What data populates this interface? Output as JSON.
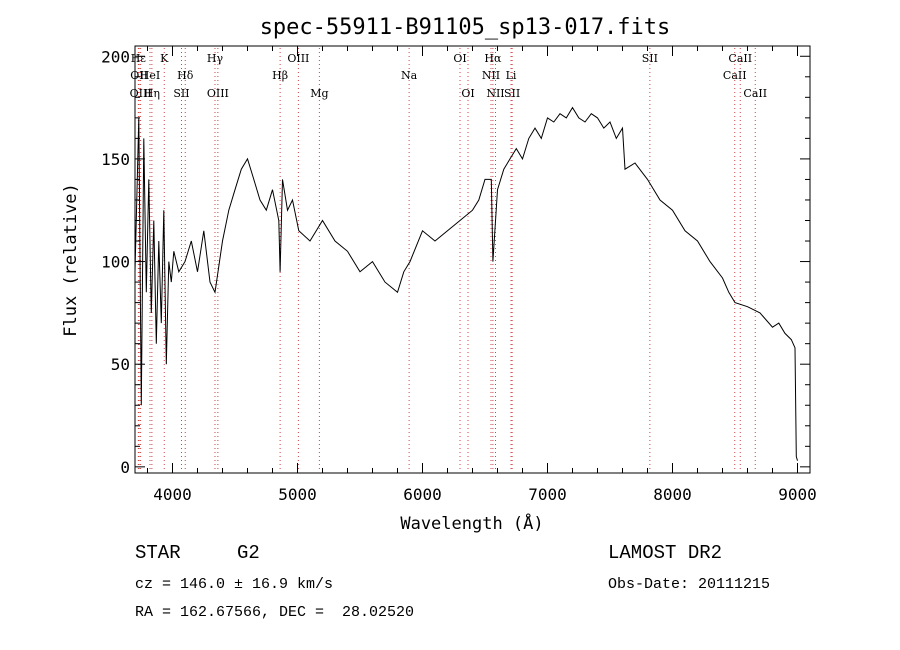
{
  "chart_data": {
    "type": "line",
    "title": "spec-55911-B91105_sp13-017.fits",
    "xlabel": "Wavelength (Å)",
    "ylabel": "Flux (relative)",
    "xlim": [
      3700,
      9100
    ],
    "ylim": [
      -3,
      205
    ],
    "x_ticks": [
      4000,
      5000,
      6000,
      7000,
      8000,
      9000
    ],
    "y_ticks": [
      0,
      50,
      100,
      150,
      200
    ],
    "grid": false,
    "series": [
      {
        "color": "#000000",
        "x": [
          3700,
          3730,
          3750,
          3770,
          3790,
          3810,
          3830,
          3850,
          3870,
          3890,
          3910,
          3930,
          3950,
          3970,
          3990,
          4010,
          4050,
          4100,
          4150,
          4200,
          4250,
          4300,
          4340,
          4400,
          4450,
          4500,
          4550,
          4600,
          4650,
          4700,
          4750,
          4800,
          4850,
          4861,
          4880,
          4920,
          4960,
          5010,
          5100,
          5200,
          5300,
          5400,
          5500,
          5600,
          5700,
          5800,
          5850,
          5900,
          6000,
          6100,
          6200,
          6300,
          6400,
          6450,
          6500,
          6550,
          6563,
          6600,
          6650,
          6700,
          6750,
          6800,
          6850,
          6900,
          6950,
          7000,
          7050,
          7100,
          7150,
          7200,
          7250,
          7300,
          7350,
          7400,
          7450,
          7500,
          7550,
          7600,
          7620,
          7700,
          7800,
          7900,
          8000,
          8100,
          8200,
          8300,
          8400,
          8450,
          8500,
          8600,
          8700,
          8800,
          8850,
          8900,
          8950,
          8980,
          8990,
          9000
        ],
        "y": [
          95,
          170,
          30,
          160,
          85,
          140,
          75,
          120,
          60,
          110,
          70,
          125,
          50,
          100,
          90,
          105,
          95,
          100,
          110,
          95,
          115,
          90,
          85,
          110,
          125,
          135,
          145,
          150,
          140,
          130,
          125,
          135,
          120,
          95,
          140,
          125,
          130,
          115,
          110,
          120,
          110,
          105,
          95,
          100,
          90,
          85,
          95,
          100,
          115,
          110,
          115,
          120,
          125,
          130,
          140,
          140,
          100,
          135,
          145,
          150,
          155,
          150,
          160,
          165,
          160,
          170,
          168,
          172,
          170,
          175,
          170,
          168,
          172,
          170,
          165,
          168,
          160,
          165,
          145,
          148,
          140,
          130,
          125,
          115,
          110,
          100,
          92,
          85,
          80,
          78,
          75,
          68,
          70,
          65,
          62,
          58,
          5,
          3
        ]
      }
    ],
    "line_markers": [
      {
        "label": "Hε",
        "x": 3727,
        "row": 1
      },
      {
        "label": "OII",
        "x": 3733,
        "row": 2
      },
      {
        "label": "OIII",
        "x": 3745,
        "row": 3
      },
      {
        "label": "Hη",
        "x": 3835,
        "row": 3
      },
      {
        "label": "HeI",
        "x": 3820,
        "row": 2
      },
      {
        "label": "K",
        "x": 3934,
        "row": 1
      },
      {
        "label": "Hδ",
        "x": 4102,
        "row": 2
      },
      {
        "label": "SII",
        "x": 4072,
        "row": 3
      },
      {
        "label": "Hγ",
        "x": 4340,
        "row": 1
      },
      {
        "label": "OIII",
        "x": 4363,
        "row": 3
      },
      {
        "label": "OIII",
        "x": 5007,
        "row": 1
      },
      {
        "label": "Hβ",
        "x": 4861,
        "row": 2
      },
      {
        "label": "Mg",
        "x": 5175,
        "row": 3
      },
      {
        "label": "Na",
        "x": 5893,
        "row": 2
      },
      {
        "label": "OI",
        "x": 6300,
        "row": 1
      },
      {
        "label": "OI",
        "x": 6364,
        "row": 3
      },
      {
        "label": "Hα",
        "x": 6563,
        "row": 1
      },
      {
        "label": "NII",
        "x": 6548,
        "row": 2
      },
      {
        "label": "Li",
        "x": 6708,
        "row": 2
      },
      {
        "label": "NII",
        "x": 6584,
        "row": 3
      },
      {
        "label": "SII",
        "x": 6717,
        "row": 3
      },
      {
        "label": "SII",
        "x": 7819,
        "row": 1
      },
      {
        "label": "CaII",
        "x": 8542,
        "row": 1
      },
      {
        "label": "CaII",
        "x": 8498,
        "row": 2
      },
      {
        "label": "CaII",
        "x": 8662,
        "row": 3
      }
    ]
  },
  "info": {
    "class": "STAR",
    "subclass": "G2",
    "survey": "LAMOST DR2",
    "cz": "cz = 146.0 ± 16.9 km/s",
    "obs_date": "Obs-Date: 20111215",
    "coords": "RA = 162.67566, DEC =  28.02520"
  }
}
